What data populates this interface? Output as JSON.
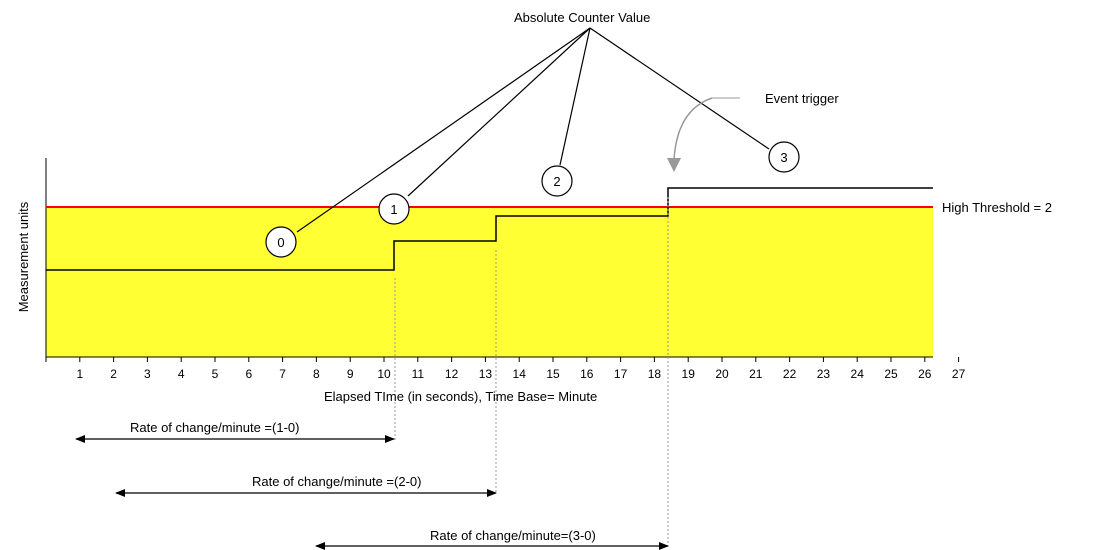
{
  "title": "Absolute Counter Value",
  "event_trigger_label": "Event  trigger",
  "threshold_label": "High Threshold = 2",
  "y_axis_label": "Measurement units",
  "x_axis_label": "Elapsed TIme (in seconds), Time Base= Minute",
  "x_ticks": [
    "1",
    "2",
    "3",
    "4",
    "5",
    "6",
    "7",
    "8",
    "9",
    "10",
    "11",
    "12",
    "13",
    "14",
    "15",
    "16",
    "17",
    "18",
    "19",
    "20",
    "21",
    "22",
    "23",
    "24",
    "25",
    "26",
    "27"
  ],
  "markers": [
    "0",
    "1",
    "2",
    "3"
  ],
  "rate_labels": [
    "Rate of change/minute =(1-0)",
    "Rate of change/minute =(2-0)",
    "Rate of change/minute=(3-0)"
  ],
  "colors": {
    "band": "#ffff33",
    "threshold_line": "#ff0000",
    "line": "#000000",
    "dotted": "#999999"
  }
}
